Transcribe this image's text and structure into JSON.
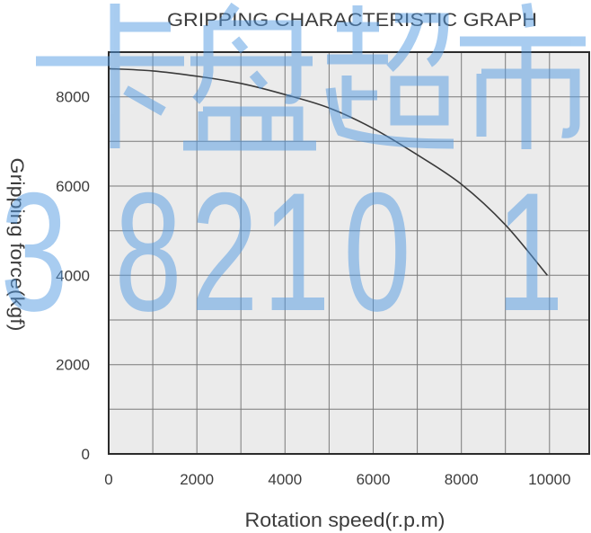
{
  "watermark": {
    "line1": "卡盘超市",
    "line2": "3 8210 1",
    "color": "#539be3"
  },
  "chart_data": {
    "type": "line",
    "title": "GRIPPING CHARACTERISTIC GRAPH",
    "xlabel": "Rotation speed(r.p.m)",
    "ylabel": "Gripping force(kgf)",
    "xlim": [
      0,
      10900
    ],
    "ylim": [
      0,
      9000
    ],
    "x_ticks": [
      0,
      2000,
      4000,
      6000,
      8000,
      10000
    ],
    "y_ticks": [
      0,
      2000,
      4000,
      6000,
      8000
    ],
    "grid": true,
    "grid_step": [
      1000,
      1000
    ],
    "series": [
      {
        "x": [
          0,
          1000,
          2000,
          3000,
          4000,
          5000,
          6000,
          7000,
          8000,
          9000,
          9950
        ],
        "y": [
          8630,
          8580,
          8460,
          8300,
          8050,
          7750,
          7290,
          6700,
          6040,
          5130,
          4000
        ]
      }
    ],
    "colors": {
      "line": "#3a3a3a",
      "plot_background": "#ebebeb",
      "grid": "#7a7a7a",
      "frame": "#2b2b2b"
    }
  }
}
